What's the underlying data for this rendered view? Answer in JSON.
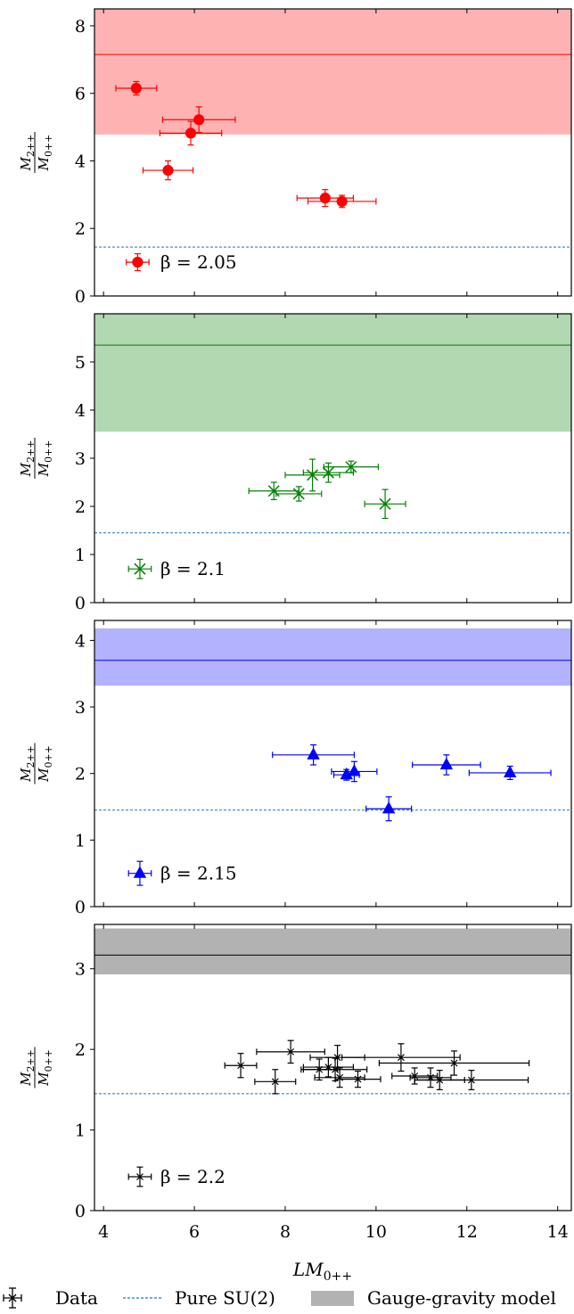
{
  "figure": {
    "xlabel_main": "LM",
    "xlabel_sub": "0++",
    "ylabel_num_main": "M",
    "ylabel_num_sub": "2++",
    "ylabel_den_main": "M",
    "ylabel_den_sub": "0++",
    "legend": {
      "data_label": "Data",
      "pure_label": "Pure SU(2)",
      "model_label": "Gauge-gravity model"
    }
  },
  "chart_data": [
    {
      "type": "scatter",
      "beta_text": "β = 2.05",
      "color": "#ff0000",
      "band_color": "#ffb2b2",
      "marker": "circle",
      "xlim": [
        3.8,
        14.3
      ],
      "ylim": [
        0,
        8.5
      ],
      "yticks": [
        0,
        2,
        4,
        6,
        8
      ],
      "xticks": [
        4,
        6,
        8,
        10,
        12,
        14
      ],
      "model": {
        "center": 7.15,
        "low": 4.78,
        "high": 8.5
      },
      "pure_su2": 1.45,
      "legend_point": {
        "x": 4.75,
        "y": 1.0,
        "xerr": 0.25,
        "yerr": 0.25
      },
      "points": [
        {
          "x": 4.72,
          "y": 6.15,
          "xerr": 0.45,
          "yerr": 0.2
        },
        {
          "x": 5.42,
          "y": 3.72,
          "xerr": 0.55,
          "yerr": 0.28
        },
        {
          "x": 5.92,
          "y": 4.82,
          "xerr": 0.68,
          "yerr": 0.35
        },
        {
          "x": 6.1,
          "y": 5.22,
          "xerr": 0.8,
          "yerr": 0.38
        },
        {
          "x": 8.88,
          "y": 2.9,
          "xerr": 0.62,
          "yerr": 0.25
        },
        {
          "x": 9.25,
          "y": 2.8,
          "xerr": 0.75,
          "yerr": 0.18
        }
      ]
    },
    {
      "type": "scatter",
      "beta_text": "β = 2.1",
      "color": "#008000",
      "band_color": "#b2d8b2",
      "marker": "x",
      "xlim": [
        3.8,
        14.3
      ],
      "ylim": [
        0,
        6.0
      ],
      "yticks": [
        0,
        1,
        2,
        3,
        4,
        5
      ],
      "xticks": [
        4,
        6,
        8,
        10,
        12,
        14
      ],
      "model": {
        "center": 5.35,
        "low": 3.55,
        "high": 6.0
      },
      "pure_su2": 1.45,
      "legend_point": {
        "x": 4.8,
        "y": 0.7,
        "xerr": 0.25,
        "yerr": 0.2
      },
      "points": [
        {
          "x": 7.75,
          "y": 2.32,
          "xerr": 0.55,
          "yerr": 0.18
        },
        {
          "x": 8.3,
          "y": 2.26,
          "xerr": 0.5,
          "yerr": 0.15
        },
        {
          "x": 8.6,
          "y": 2.65,
          "xerr": 0.6,
          "yerr": 0.33
        },
        {
          "x": 8.95,
          "y": 2.7,
          "xerr": 0.55,
          "yerr": 0.2
        },
        {
          "x": 9.45,
          "y": 2.82,
          "xerr": 0.6,
          "yerr": 0.12
        },
        {
          "x": 10.2,
          "y": 2.05,
          "xerr": 0.45,
          "yerr": 0.3
        }
      ]
    },
    {
      "type": "scatter",
      "beta_text": "β = 2.15",
      "color": "#0000ff",
      "band_color": "#b2b2ff",
      "marker": "triangle",
      "xlim": [
        3.8,
        14.3
      ],
      "ylim": [
        0,
        4.3
      ],
      "yticks": [
        0,
        1,
        2,
        3,
        4
      ],
      "xticks": [
        4,
        6,
        8,
        10,
        12,
        14
      ],
      "model": {
        "center": 3.7,
        "low": 3.32,
        "high": 4.18
      },
      "pure_su2": 1.45,
      "legend_point": {
        "x": 4.8,
        "y": 0.5,
        "xerr": 0.25,
        "yerr": 0.18
      },
      "points": [
        {
          "x": 8.62,
          "y": 2.28,
          "xerr": 0.9,
          "yerr": 0.15
        },
        {
          "x": 9.35,
          "y": 1.98,
          "xerr": 0.28,
          "yerr": 0.08
        },
        {
          "x": 9.52,
          "y": 2.03,
          "xerr": 0.5,
          "yerr": 0.15
        },
        {
          "x": 10.28,
          "y": 1.47,
          "xerr": 0.5,
          "yerr": 0.18
        },
        {
          "x": 11.55,
          "y": 2.13,
          "xerr": 0.75,
          "yerr": 0.15
        },
        {
          "x": 12.95,
          "y": 2.01,
          "xerr": 0.9,
          "yerr": 0.1
        }
      ]
    },
    {
      "type": "scatter",
      "beta_text": "β = 2.2",
      "color": "#000000",
      "band_color": "#b2b2b2",
      "marker": "plus",
      "xlim": [
        3.8,
        14.3
      ],
      "ylim": [
        0,
        3.55
      ],
      "yticks": [
        0,
        1,
        2,
        3
      ],
      "xticks": [
        4,
        6,
        8,
        10,
        12,
        14
      ],
      "xticklabels": [
        "4",
        "6",
        "8",
        "10",
        "12",
        "14"
      ],
      "model": {
        "center": 3.17,
        "low": 2.93,
        "high": 3.5
      },
      "pure_su2": 1.45,
      "legend_point": {
        "x": 4.8,
        "y": 0.42,
        "xerr": 0.25,
        "yerr": 0.12
      },
      "points": [
        {
          "x": 7.02,
          "y": 1.8,
          "xerr": 0.35,
          "yerr": 0.15
        },
        {
          "x": 7.78,
          "y": 1.6,
          "xerr": 0.45,
          "yerr": 0.15
        },
        {
          "x": 8.12,
          "y": 1.97,
          "xerr": 0.75,
          "yerr": 0.14
        },
        {
          "x": 8.75,
          "y": 1.75,
          "xerr": 0.4,
          "yerr": 0.13
        },
        {
          "x": 8.95,
          "y": 1.78,
          "xerr": 0.55,
          "yerr": 0.12
        },
        {
          "x": 9.1,
          "y": 1.75,
          "xerr": 0.7,
          "yerr": 0.14
        },
        {
          "x": 9.15,
          "y": 1.9,
          "xerr": 0.6,
          "yerr": 0.15
        },
        {
          "x": 9.2,
          "y": 1.65,
          "xerr": 0.55,
          "yerr": 0.12
        },
        {
          "x": 9.6,
          "y": 1.63,
          "xerr": 0.5,
          "yerr": 0.1
        },
        {
          "x": 10.55,
          "y": 1.9,
          "xerr": 1.3,
          "yerr": 0.17
        },
        {
          "x": 10.85,
          "y": 1.67,
          "xerr": 0.5,
          "yerr": 0.1
        },
        {
          "x": 11.2,
          "y": 1.65,
          "xerr": 0.45,
          "yerr": 0.12
        },
        {
          "x": 11.4,
          "y": 1.62,
          "xerr": 0.55,
          "yerr": 0.12
        },
        {
          "x": 11.72,
          "y": 1.83,
          "xerr": 1.65,
          "yerr": 0.15
        },
        {
          "x": 12.1,
          "y": 1.62,
          "xerr": 1.25,
          "yerr": 0.12
        }
      ]
    }
  ]
}
